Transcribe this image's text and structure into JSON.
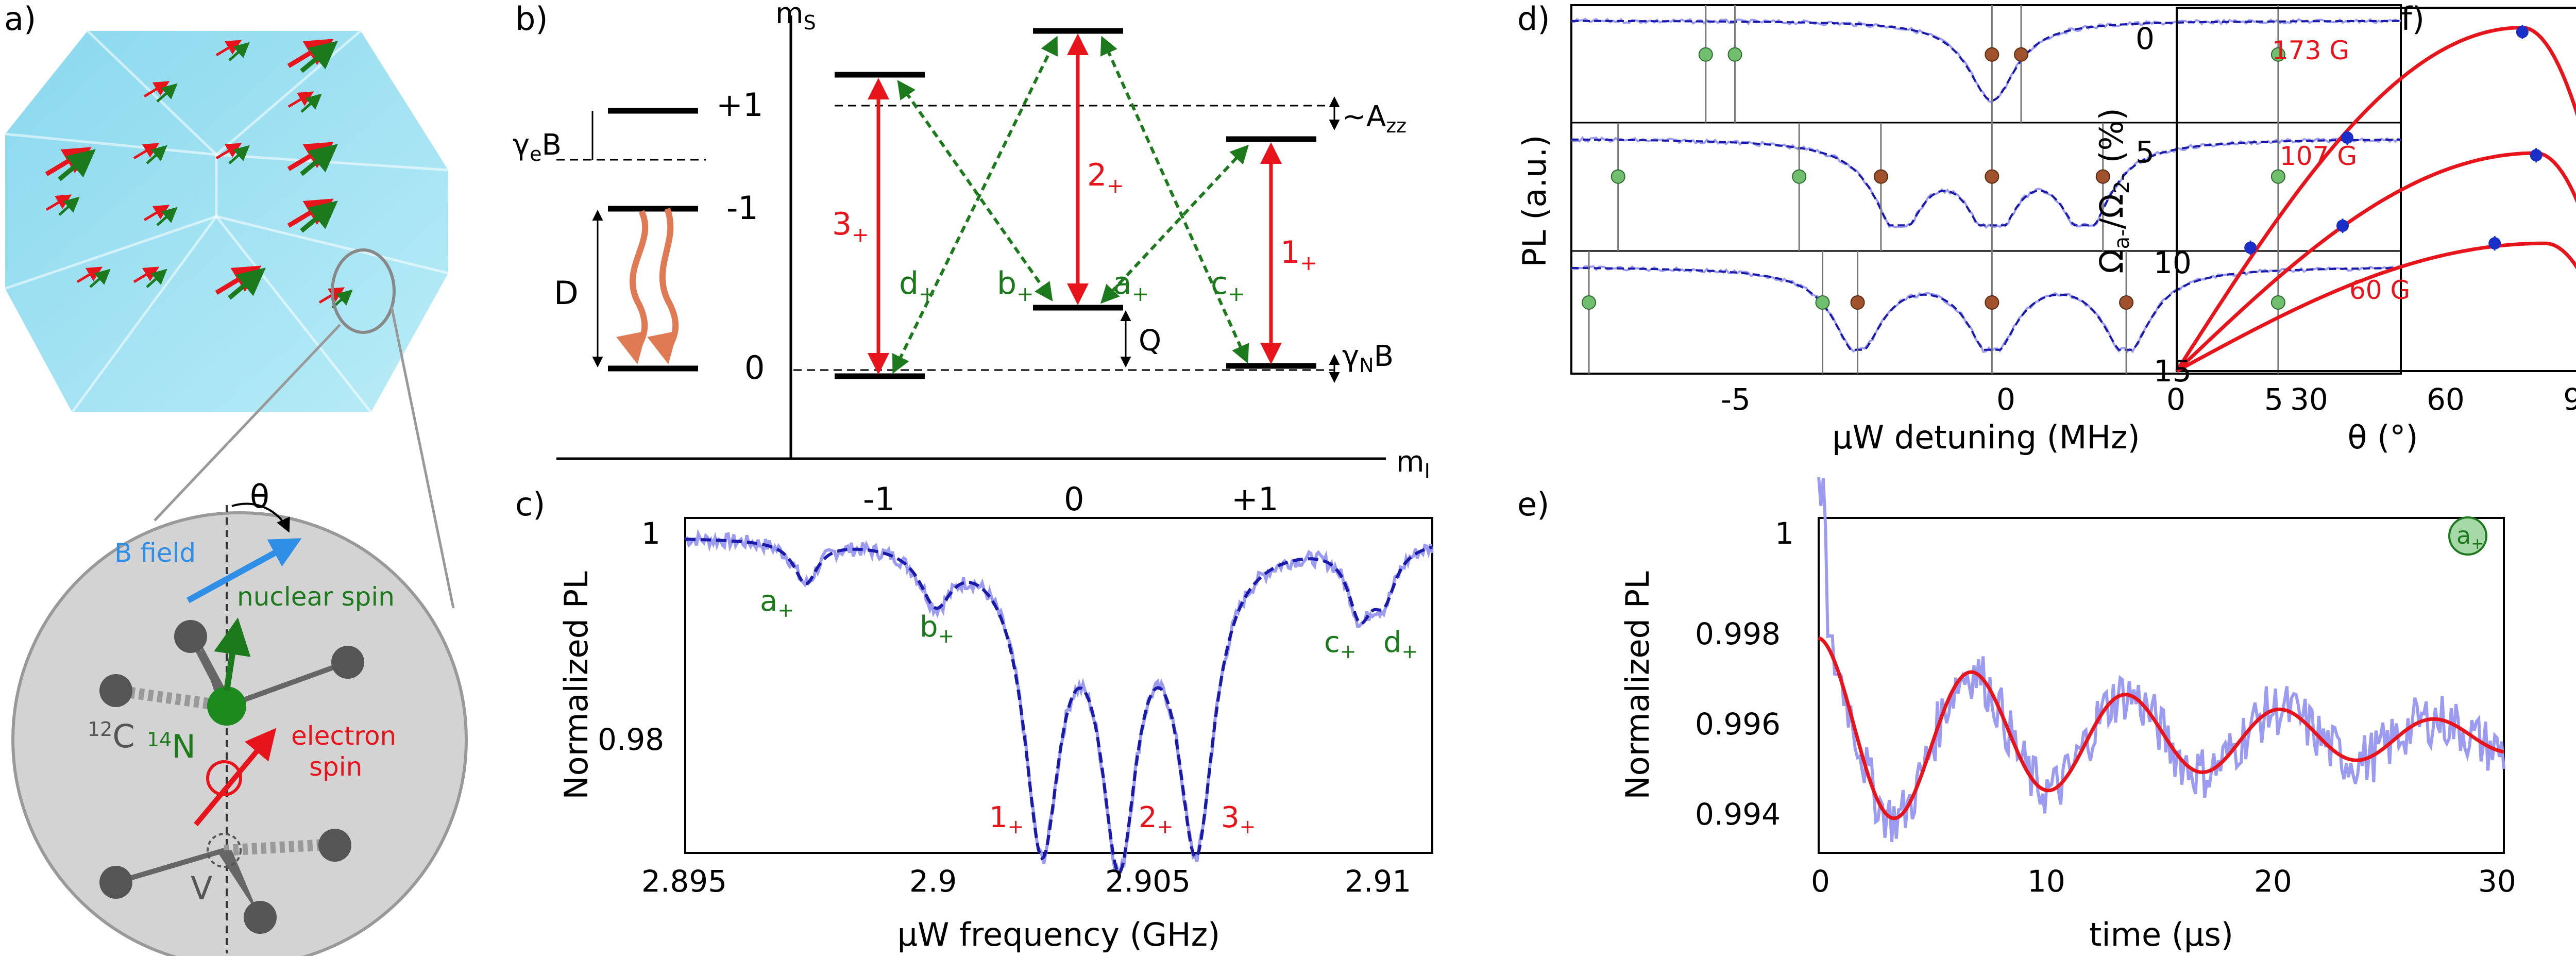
{
  "panel_labels": {
    "a": "a)",
    "b": "b)",
    "c": "c)",
    "d": "d)",
    "e": "e)",
    "f": "f)"
  },
  "colors": {
    "red": "#e8141b",
    "green": "#1c7a1c",
    "blue": "#4a4ae6",
    "light_blue": "#9b9bf2",
    "crystal": "#8fdcef",
    "level": "#000000",
    "decay": "#e07a55",
    "gray": "#666666",
    "dot_green": "#6fbf6f",
    "dot_brown": "#a0522d",
    "dot_blue": "#1a2ec8",
    "bfield": "#2f8fe6"
  },
  "panel_a": {
    "theta": "θ",
    "b_field": "B field",
    "nuclear_spin": "nuclear spin",
    "electron_spin": "electron spin",
    "c12": "12C",
    "n14": "14N",
    "vacancy": "V"
  },
  "panel_b": {
    "ms_axis": "mS",
    "mi_axis": "mI",
    "ms_ticks": [
      "+1",
      "-1",
      "0"
    ],
    "mi_ticks": [
      "-1",
      "0",
      "+1"
    ],
    "gamma_e_b": "γeB",
    "zfs": "D",
    "azz": "~Azz",
    "quad": "Q",
    "gamma_n_b": "γNB",
    "transitions_red": [
      "3+",
      "2+",
      "1+"
    ],
    "transitions_green": [
      "d+",
      "b+",
      "a+",
      "c+"
    ]
  },
  "panel_c": {
    "xlabel": "μW frequency (GHz)",
    "ylabel": "Normalized PL",
    "xticks": [
      "2.895",
      "2.9",
      "2.905",
      "2.91"
    ],
    "yticks": [
      "1",
      "0.98"
    ],
    "peak_labels_green": [
      "a+",
      "b+",
      "c+",
      "d+"
    ],
    "peak_labels_red": [
      "1+",
      "2+",
      "3+"
    ]
  },
  "panel_d": {
    "xlabel": "μW detuning (MHz)",
    "ylabel": "PL (a.u.)",
    "xticks": [
      "-5",
      "0",
      "5"
    ]
  },
  "panel_e": {
    "xlabel": "time (μs)",
    "ylabel": "Normalized PL",
    "xticks": [
      "0",
      "10",
      "20",
      "30"
    ],
    "yticks": [
      "1",
      "0.998",
      "0.996",
      "0.994"
    ],
    "badge": "a+"
  },
  "panel_f": {
    "xlabel": "θ (°)",
    "ylabel": "Ωa-/Ω2- (%)",
    "xticks": [
      "0",
      "30",
      "60",
      "90"
    ],
    "yticks": [
      "0",
      "5",
      "10",
      "15"
    ],
    "series_labels": [
      "173 G",
      "107 G",
      "60 G"
    ]
  },
  "chart_data": [
    {
      "panel": "c",
      "type": "line",
      "xlabel": "μW frequency (GHz)",
      "ylabel": "Normalized PL",
      "xlim": [
        2.895,
        2.9105
      ],
      "ylim": [
        0.9735,
        1.0015
      ],
      "dips": [
        {
          "label": "a+",
          "x": 2.8975,
          "depth": 0.0035,
          "width": 0.0003
        },
        {
          "label": "b+",
          "x": 2.9002,
          "depth": 0.0045,
          "width": 0.0004
        },
        {
          "label": "1+",
          "x": 2.9024,
          "depth": 0.0245,
          "width": 0.00045
        },
        {
          "label": "2+",
          "x": 2.904,
          "depth": 0.0245,
          "width": 0.00045
        },
        {
          "label": "3+",
          "x": 2.9056,
          "depth": 0.0245,
          "width": 0.00045
        },
        {
          "label": "c+",
          "x": 2.909,
          "depth": 0.0055,
          "width": 0.0003
        },
        {
          "label": "d+",
          "x": 2.9095,
          "depth": 0.004,
          "width": 0.0003
        }
      ]
    },
    {
      "panel": "d",
      "type": "line",
      "xlabel": "μW detuning (MHz)",
      "ylabel": "PL (a.u.)",
      "xlim": [
        -7.2,
        7.0
      ],
      "subplots": [
        {
          "dips": [
            0.0
          ],
          "green_dots": [
            -4.9,
            -4.4,
            4.9
          ],
          "brown_dots": [
            0.0,
            0.5
          ]
        },
        {
          "dips": [
            -1.6,
            0.0,
            1.6
          ],
          "green_dots": [
            -6.4,
            -3.3,
            4.9
          ],
          "brown_dots": [
            -1.9,
            0.0,
            1.9
          ]
        },
        {
          "dips": [
            -2.3,
            0.0,
            2.3
          ],
          "green_dots": [
            -6.9,
            -2.9,
            4.9
          ],
          "brown_dots": [
            -2.3,
            0.0,
            2.3
          ]
        }
      ]
    },
    {
      "panel": "e",
      "type": "line",
      "xlabel": "time (μs)",
      "ylabel": "Normalized PL",
      "xlim": [
        0,
        30
      ],
      "ylim": [
        0.9938,
        1.0012
      ],
      "fit": {
        "offset": 0.99635,
        "amplitude": 0.0022,
        "period": 6.75,
        "decay_time": 16,
        "phase_deg": 0
      }
    },
    {
      "panel": "f",
      "type": "scatter",
      "xlabel": "θ (°)",
      "ylabel": "Ωa-/Ω2- (%)",
      "xlim": [
        0,
        90
      ],
      "ylim": [
        0,
        16.5
      ],
      "series": [
        {
          "name": "173 G",
          "points": [
            [
              75,
              15.4
            ]
          ]
        },
        {
          "name": "107 G",
          "points": [
            [
              37,
              10.6
            ],
            [
              78,
              9.8
            ]
          ]
        },
        {
          "name": "60 G",
          "points": [
            [
              16,
              5.6
            ],
            [
              36,
              6.6
            ],
            [
              69,
              5.8
            ]
          ]
        }
      ]
    }
  ]
}
